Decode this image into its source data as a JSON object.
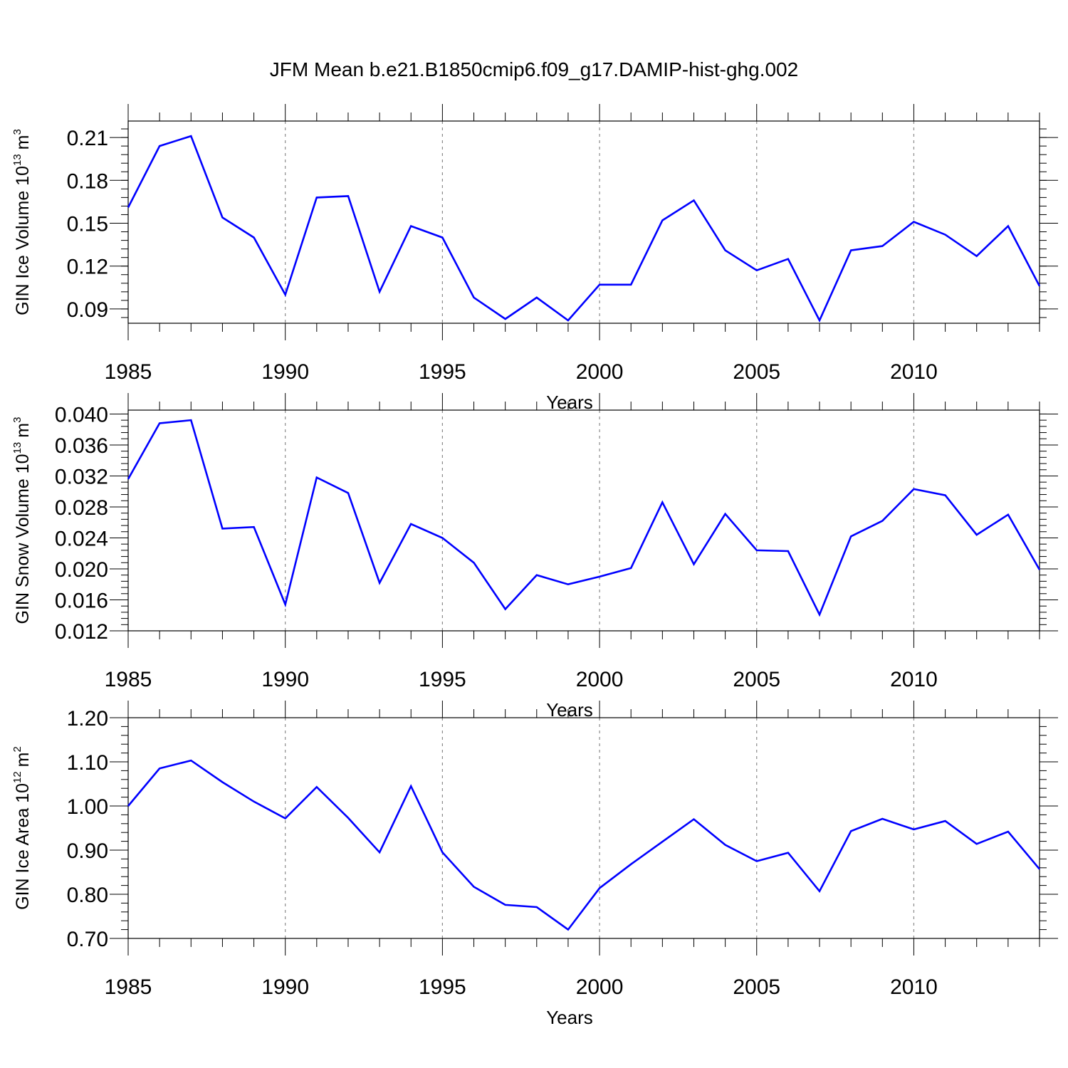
{
  "figure": {
    "title": "JFM Mean b.e21.B1850cmip6.f09_g17.DAMIP-hist-ghg.002"
  },
  "colors": {
    "series": "#0000ff",
    "axes": "#000000",
    "grid": "#8a8a8a"
  },
  "chart_data": [
    {
      "type": "line",
      "title": "",
      "ylabel": "GIN Ice Volume 10",
      "ylabel_sup": "13",
      "ylabel_unit": "m",
      "ylabel_unit_sup": "3",
      "xlabel": "Years",
      "xlim": [
        1985,
        2014
      ],
      "ylim": [
        0.08,
        0.2215
      ],
      "x_ticks": [
        1985,
        1990,
        1995,
        2000,
        2005,
        2010
      ],
      "x_tick_labels": [
        "1985",
        "1990",
        "1995",
        "2000",
        "2005",
        "2010"
      ],
      "y_ticks": [
        0.09,
        0.12,
        0.15,
        0.18,
        0.21
      ],
      "y_tick_labels": [
        "0.09",
        "0.12",
        "0.15",
        "0.18",
        "0.21"
      ],
      "y_minor_step": 0.006,
      "grid": "vertical dashed at major x ticks",
      "x": [
        1985,
        1986,
        1987,
        1988,
        1989,
        1990,
        1991,
        1992,
        1993,
        1994,
        1995,
        1996,
        1997,
        1998,
        1999,
        2000,
        2001,
        2002,
        2003,
        2004,
        2005,
        2006,
        2007,
        2008,
        2009,
        2010,
        2011,
        2012,
        2013,
        2014
      ],
      "series": [
        {
          "values": [
            0.161,
            0.204,
            0.211,
            0.154,
            0.14,
            0.1,
            0.168,
            0.169,
            0.102,
            0.148,
            0.14,
            0.098,
            0.083,
            0.098,
            0.082,
            0.107,
            0.107,
            0.152,
            0.166,
            0.131,
            0.117,
            0.125,
            0.082,
            0.131,
            0.134,
            0.151,
            0.142,
            0.127,
            0.148,
            0.106
          ]
        }
      ]
    },
    {
      "type": "line",
      "title": "",
      "ylabel": "GIN Snow Volume 10",
      "ylabel_sup": "13",
      "ylabel_unit": "m",
      "ylabel_unit_sup": "3",
      "xlabel": "Years",
      "xlim": [
        1985,
        2014
      ],
      "ylim": [
        0.012,
        0.0405
      ],
      "x_ticks": [
        1985,
        1990,
        1995,
        2000,
        2005,
        2010
      ],
      "x_tick_labels": [
        "1985",
        "1990",
        "1995",
        "2000",
        "2005",
        "2010"
      ],
      "y_ticks": [
        0.012,
        0.016,
        0.02,
        0.024,
        0.028,
        0.032,
        0.036,
        0.04
      ],
      "y_tick_labels": [
        "0.012",
        "0.016",
        "0.020",
        "0.024",
        "0.028",
        "0.032",
        "0.036",
        "0.040"
      ],
      "y_minor_step": 0.0008,
      "grid": "vertical dashed at major x ticks",
      "x": [
        1985,
        1986,
        1987,
        1988,
        1989,
        1990,
        1991,
        1992,
        1993,
        1994,
        1995,
        1996,
        1997,
        1998,
        1999,
        2000,
        2001,
        2002,
        2003,
        2004,
        2005,
        2006,
        2007,
        2008,
        2009,
        2010,
        2011,
        2012,
        2013,
        2014
      ],
      "series": [
        {
          "values": [
            0.0316,
            0.0388,
            0.0392,
            0.0252,
            0.0254,
            0.0154,
            0.0318,
            0.0298,
            0.0182,
            0.0258,
            0.024,
            0.0208,
            0.0148,
            0.0192,
            0.018,
            0.019,
            0.0201,
            0.0286,
            0.0206,
            0.0271,
            0.0224,
            0.0223,
            0.0141,
            0.0242,
            0.0262,
            0.0303,
            0.0295,
            0.0244,
            0.027,
            0.0199
          ]
        }
      ]
    },
    {
      "type": "line",
      "title": "",
      "ylabel": "GIN Ice Area 10",
      "ylabel_sup": "12",
      "ylabel_unit": "m",
      "ylabel_unit_sup": "2",
      "xlabel": "Years",
      "xlim": [
        1985,
        2014
      ],
      "ylim": [
        0.7,
        1.2
      ],
      "x_ticks": [
        1985,
        1990,
        1995,
        2000,
        2005,
        2010
      ],
      "x_tick_labels": [
        "1985",
        "1990",
        "1995",
        "2000",
        "2005",
        "2010"
      ],
      "y_ticks": [
        0.7,
        0.8,
        0.9,
        1.0,
        1.1,
        1.2
      ],
      "y_tick_labels": [
        "0.70",
        "0.80",
        "0.90",
        "1.00",
        "1.10",
        "1.20"
      ],
      "y_minor_step": 0.02,
      "grid": "vertical dashed at major x ticks",
      "x": [
        1985,
        1986,
        1987,
        1988,
        1989,
        1990,
        1991,
        1992,
        1993,
        1994,
        1995,
        1996,
        1997,
        1998,
        1999,
        2000,
        2001,
        2002,
        2003,
        2004,
        2005,
        2006,
        2007,
        2008,
        2009,
        2010,
        2011,
        2012,
        2013,
        2014
      ],
      "series": [
        {
          "values": [
            1.0,
            1.085,
            1.103,
            1.054,
            1.01,
            0.972,
            1.043,
            0.973,
            0.895,
            1.045,
            0.895,
            0.817,
            0.776,
            0.771,
            0.72,
            0.814,
            0.868,
            0.919,
            0.97,
            0.912,
            0.875,
            0.894,
            0.807,
            0.943,
            0.971,
            0.947,
            0.966,
            0.914,
            0.942,
            0.857
          ]
        }
      ]
    }
  ]
}
